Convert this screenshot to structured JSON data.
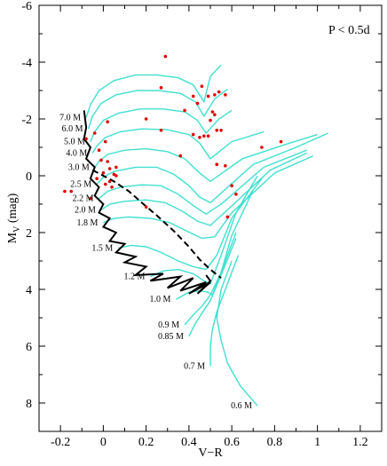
{
  "chart_data": {
    "type": "scatter",
    "xlabel": "V−R",
    "ylabel_main": "M",
    "ylabel_sub": "V",
    "ylabel_unit": " (mag)",
    "annotation": "P < 0.5d",
    "xlim": [
      -0.3,
      1.3
    ],
    "ylim": [
      -6,
      9
    ],
    "y_inverted": true,
    "x_ticks": [
      -0.2,
      0,
      0.2,
      0.4,
      0.6,
      0.8,
      1.0,
      1.2
    ],
    "x_tick_labels": [
      "-0.2",
      "0",
      "0.2",
      "0.4",
      "0.6",
      "0.8",
      "1",
      "1.2"
    ],
    "y_ticks": [
      -6,
      -4,
      -2,
      0,
      2,
      4,
      6,
      8
    ],
    "y_tick_labels": [
      "-6",
      "-4",
      "-2",
      "0",
      "2",
      "4",
      "6",
      "8"
    ],
    "colors": {
      "tracks": "#40e0d0",
      "stars": "#e00000",
      "boundary": "#000000"
    },
    "tracks": [
      {
        "name": "7.0 M",
        "x": [
          -0.08,
          -0.06,
          -0.02,
          0.05,
          0.15,
          0.25,
          0.35,
          0.42,
          0.47,
          0.5,
          0.55
        ],
        "y": [
          -2.05,
          -2.5,
          -3.0,
          -3.35,
          -3.55,
          -3.55,
          -3.45,
          -3.2,
          -2.6,
          -3.5,
          -3.9
        ]
      },
      {
        "name": "6.0 M",
        "x": [
          -0.07,
          -0.05,
          -0.01,
          0.06,
          0.16,
          0.26,
          0.36,
          0.43,
          0.47,
          0.52,
          0.58
        ],
        "y": [
          -1.65,
          -2.1,
          -2.55,
          -2.85,
          -3.0,
          -3.0,
          -2.9,
          -2.6,
          -2.1,
          -2.7,
          -3.05
        ]
      },
      {
        "name": "5.0 M",
        "x": [
          -0.06,
          -0.04,
          0.0,
          0.07,
          0.17,
          0.28,
          0.38,
          0.44,
          0.48,
          0.54,
          0.6
        ],
        "y": [
          -1.2,
          -1.55,
          -1.95,
          -2.2,
          -2.35,
          -2.35,
          -2.25,
          -1.95,
          -1.5,
          -2.0,
          -2.3
        ]
      },
      {
        "name": "4.0 M",
        "x": [
          -0.05,
          -0.03,
          0.01,
          0.08,
          0.18,
          0.3,
          0.4,
          0.45,
          0.5,
          0.6,
          0.75
        ],
        "y": [
          -0.8,
          -1.05,
          -1.35,
          -1.55,
          -1.65,
          -1.62,
          -1.45,
          -1.15,
          -0.6,
          -1.2,
          -1.55
        ]
      },
      {
        "name": "3.0 M",
        "x": [
          -0.04,
          -0.02,
          0.02,
          0.1,
          0.2,
          0.3,
          0.38,
          0.45,
          0.5,
          0.65,
          0.85,
          1.0
        ],
        "y": [
          -0.3,
          -0.5,
          -0.75,
          -0.9,
          -0.95,
          -0.85,
          -0.6,
          -0.1,
          0.2,
          -0.6,
          -1.1,
          -1.45
        ]
      },
      {
        "name": "2.5 M",
        "x": [
          -0.03,
          0.0,
          0.05,
          0.15,
          0.25,
          0.33,
          0.4,
          0.45,
          0.5,
          0.7,
          0.9,
          1.05
        ],
        "y": [
          0.3,
          0.05,
          -0.15,
          -0.3,
          -0.3,
          -0.05,
          0.35,
          0.75,
          0.95,
          -0.4,
          -1.0,
          -1.5
        ]
      },
      {
        "name": "2.2 M",
        "x": [
          -0.02,
          0.02,
          0.08,
          0.18,
          0.27,
          0.35,
          0.42,
          0.48,
          0.55,
          0.75,
          0.95
        ],
        "y": [
          0.8,
          0.55,
          0.4,
          0.32,
          0.35,
          0.65,
          1.05,
          1.35,
          1.0,
          -0.3,
          -0.9
        ]
      },
      {
        "name": "2.0 M",
        "x": [
          -0.01,
          0.03,
          0.1,
          0.2,
          0.29,
          0.37,
          0.44,
          0.5,
          0.58,
          0.78,
          0.95
        ],
        "y": [
          1.2,
          1.0,
          0.9,
          0.85,
          0.95,
          1.25,
          1.6,
          1.75,
          1.2,
          -0.2,
          -0.8
        ]
      },
      {
        "name": "1.8 M",
        "x": [
          0.0,
          0.05,
          0.12,
          0.22,
          0.31,
          0.39,
          0.46,
          0.52,
          0.6,
          0.8,
          0.98
        ],
        "y": [
          1.65,
          1.5,
          1.45,
          1.5,
          1.65,
          1.95,
          2.2,
          2.15,
          1.3,
          -0.1,
          -0.7
        ]
      },
      {
        "name": "1.5 M",
        "x": [
          0.07,
          0.13,
          0.2,
          0.27,
          0.35,
          0.42,
          0.48,
          0.53,
          0.6,
          0.75
        ],
        "y": [
          2.55,
          2.45,
          2.5,
          2.7,
          3.0,
          3.2,
          3.3,
          2.8,
          1.5,
          0.0
        ]
      },
      {
        "name": "1.2 M",
        "x": [
          0.22,
          0.28,
          0.35,
          0.42,
          0.47,
          0.5,
          0.55,
          0.62,
          0.72
        ],
        "y": [
          3.55,
          3.35,
          3.3,
          3.45,
          3.7,
          3.8,
          2.8,
          1.3,
          0.0
        ]
      },
      {
        "name": "1.0 M",
        "x": [
          0.34,
          0.4,
          0.45,
          0.49,
          0.51,
          0.55,
          0.6,
          0.7
        ],
        "y": [
          4.35,
          4.1,
          4.05,
          4.1,
          4.2,
          3.4,
          2.1,
          0.5
        ]
      },
      {
        "name": "0.9 M",
        "x": [
          0.38,
          0.42,
          0.46,
          0.5,
          0.55,
          0.62
        ],
        "y": [
          5.25,
          4.9,
          4.6,
          4.2,
          3.4,
          2.0
        ]
      },
      {
        "name": "0.85 M",
        "x": [
          0.4,
          0.43,
          0.46,
          0.5,
          0.55,
          0.62
        ],
        "y": [
          5.65,
          5.2,
          4.85,
          4.4,
          3.5,
          2.2
        ]
      },
      {
        "name": "0.7 M",
        "x": [
          0.5,
          0.5,
          0.51,
          0.53,
          0.57,
          0.63
        ],
        "y": [
          6.7,
          6.0,
          5.4,
          4.8,
          4.0,
          2.8
        ]
      },
      {
        "name": "0.6 M",
        "x": [
          0.72,
          0.64,
          0.58,
          0.55,
          0.53,
          0.55,
          0.6
        ],
        "y": [
          8.1,
          7.4,
          6.6,
          5.8,
          5.0,
          4.0,
          3.0
        ]
      }
    ],
    "zams_boundary": {
      "x": [
        -0.09,
        -0.08,
        -0.09,
        -0.06,
        -0.08,
        -0.04,
        -0.06,
        -0.02,
        -0.04,
        0.0,
        -0.02,
        0.03,
        0.0,
        0.06,
        0.03,
        0.1,
        0.06,
        0.15,
        0.1,
        0.2,
        0.15,
        0.28,
        0.22,
        0.36,
        0.3,
        0.42,
        0.36,
        0.48,
        0.4,
        0.5,
        0.44,
        0.5,
        0.48
      ],
      "y": [
        -2.3,
        -1.7,
        -1.3,
        -1.0,
        -0.6,
        -0.3,
        0.1,
        0.4,
        0.7,
        1.0,
        1.3,
        1.5,
        1.8,
        2.0,
        2.3,
        2.4,
        2.7,
        2.85,
        3.05,
        3.2,
        3.5,
        3.45,
        3.7,
        3.55,
        3.95,
        3.6,
        4.05,
        3.75,
        4.15,
        3.75,
        4.15,
        3.7,
        3.5
      ]
    },
    "tams_boundary": {
      "x": [
        -0.05,
        0.05,
        0.12,
        0.18,
        0.25,
        0.33,
        0.4,
        0.45,
        0.5,
        0.55
      ],
      "y": [
        -0.2,
        0.2,
        0.55,
        0.95,
        1.4,
        1.95,
        2.5,
        2.95,
        3.3,
        3.6
      ]
    },
    "stars": {
      "x": [
        0.29,
        0.27,
        0.46,
        0.49,
        0.52,
        0.54,
        0.57,
        0.42,
        0.44,
        0.51,
        0.38,
        0.5,
        0.52,
        0.2,
        0.27,
        0.42,
        0.45,
        0.47,
        0.49,
        0.53,
        0.55,
        0.36,
        0.53,
        0.57,
        0.74,
        0.83,
        0.6,
        0.62,
        0.58,
        -0.08,
        -0.04,
        -0.02,
        -0.01,
        0.02,
        0.03,
        0.05,
        0.06,
        0.04,
        0.01,
        -0.03,
        -0.06,
        -0.15,
        -0.18,
        0.0,
        0.03,
        0.2,
        0.02,
        0.01,
        0.06
      ],
      "y": [
        -4.2,
        -3.1,
        -3.15,
        -2.8,
        -2.85,
        -2.95,
        -2.85,
        -2.8,
        -2.55,
        -2.25,
        -2.3,
        -1.95,
        -2.15,
        -2.0,
        -1.6,
        -1.45,
        -1.35,
        -1.4,
        -1.4,
        -1.6,
        -1.6,
        -0.7,
        -0.4,
        -0.35,
        -1.0,
        -1.2,
        0.35,
        0.65,
        1.45,
        -1.3,
        -1.5,
        -0.9,
        -0.55,
        -0.5,
        -0.25,
        -0.05,
        0.0,
        0.4,
        0.3,
        0.1,
        0.8,
        0.55,
        0.55,
        -0.1,
        0.2,
        1.1,
        -1.9,
        -1.2,
        -0.3
      ]
    }
  }
}
